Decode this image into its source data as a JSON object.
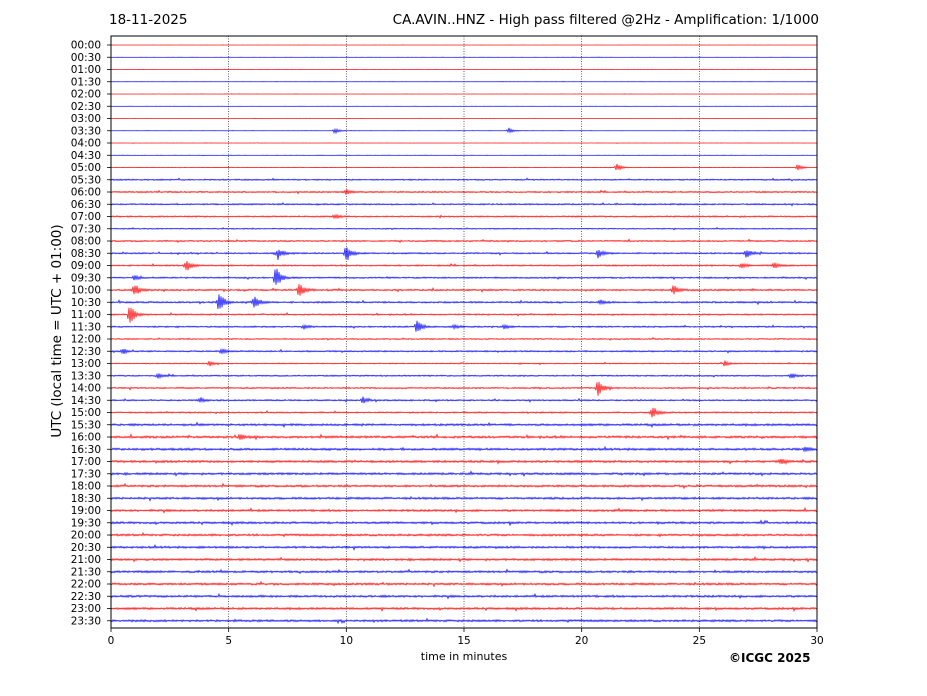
{
  "header": {
    "date": "18-11-2025",
    "title": "CA.AVIN..HNZ - High pass filtered @2Hz - Amplification: 1/1000"
  },
  "footer": {
    "copyright": "©ICGC 2025"
  },
  "chart_data": {
    "type": "line",
    "title": "CA.AVIN..HNZ - High pass filtered @2Hz - Amplification: 1/1000",
    "xlabel": "time in minutes",
    "ylabel": "UTC (local time = UTC + 01:00)",
    "xlim": [
      0,
      30
    ],
    "xticks": [
      0,
      5,
      10,
      15,
      20,
      25,
      30
    ],
    "grid": "vertical dotted lines at x ticks",
    "trace_colors": [
      "#ff0000",
      "#0000ff"
    ],
    "rows": [
      "00:00",
      "00:30",
      "01:00",
      "01:30",
      "02:00",
      "02:30",
      "03:00",
      "03:30",
      "04:00",
      "04:30",
      "05:00",
      "05:30",
      "06:00",
      "06:30",
      "07:00",
      "07:30",
      "08:00",
      "08:30",
      "09:00",
      "09:30",
      "10:00",
      "10:30",
      "11:00",
      "11:30",
      "12:00",
      "12:30",
      "13:00",
      "13:30",
      "14:00",
      "14:30",
      "15:00",
      "15:30",
      "16:00",
      "16:30",
      "17:00",
      "17:30",
      "18:00",
      "18:30",
      "19:00",
      "19:30",
      "20:00",
      "20:30",
      "21:00",
      "21:30",
      "22:00",
      "22:30",
      "23:00",
      "23:30"
    ],
    "noise_level": [
      0.05,
      0.05,
      0.05,
      0.05,
      0.07,
      0.05,
      0.06,
      0.07,
      0.07,
      0.08,
      0.18,
      0.55,
      0.6,
      0.6,
      0.6,
      0.45,
      0.6,
      0.6,
      0.6,
      0.6,
      0.7,
      0.7,
      0.6,
      0.6,
      0.5,
      0.6,
      0.45,
      0.55,
      0.6,
      0.6,
      0.6,
      0.85,
      0.9,
      0.9,
      0.9,
      0.85,
      0.85,
      0.85,
      0.85,
      0.85,
      0.85,
      0.85,
      0.85,
      0.85,
      0.85,
      0.85,
      0.85,
      0.85
    ],
    "events": [
      {
        "row": "03:30",
        "minute": 9.5,
        "amplitude": 1.5
      },
      {
        "row": "03:30",
        "minute": 16.9,
        "amplitude": 1.4
      },
      {
        "row": "05:00",
        "minute": 21.5,
        "amplitude": 2.0
      },
      {
        "row": "05:00",
        "minute": 29.2,
        "amplitude": 1.6
      },
      {
        "row": "06:00",
        "minute": 10.0,
        "amplitude": 1.2
      },
      {
        "row": "07:00",
        "minute": 9.5,
        "amplitude": 1.2
      },
      {
        "row": "08:30",
        "minute": 10.0,
        "amplitude": 4.5
      },
      {
        "row": "08:30",
        "minute": 20.7,
        "amplitude": 2.5
      },
      {
        "row": "08:30",
        "minute": 27.0,
        "amplitude": 2.2
      },
      {
        "row": "08:30",
        "minute": 7.1,
        "amplitude": 3.0
      },
      {
        "row": "09:00",
        "minute": 3.2,
        "amplitude": 3.0
      },
      {
        "row": "09:00",
        "minute": 26.8,
        "amplitude": 1.5
      },
      {
        "row": "09:00",
        "minute": 28.2,
        "amplitude": 1.5
      },
      {
        "row": "09:30",
        "minute": 7.0,
        "amplitude": 5.5
      },
      {
        "row": "09:30",
        "minute": 1.0,
        "amplitude": 1.3
      },
      {
        "row": "10:00",
        "minute": 1.0,
        "amplitude": 3.0
      },
      {
        "row": "10:00",
        "minute": 8.0,
        "amplitude": 4.0
      },
      {
        "row": "10:00",
        "minute": 23.9,
        "amplitude": 2.5
      },
      {
        "row": "10:30",
        "minute": 4.6,
        "amplitude": 5.0
      },
      {
        "row": "10:30",
        "minute": 6.1,
        "amplitude": 3.5
      },
      {
        "row": "10:30",
        "minute": 20.8,
        "amplitude": 1.2
      },
      {
        "row": "11:00",
        "minute": 0.8,
        "amplitude": 5.0
      },
      {
        "row": "11:30",
        "minute": 13.0,
        "amplitude": 3.5
      },
      {
        "row": "11:30",
        "minute": 8.2,
        "amplitude": 1.2
      },
      {
        "row": "11:30",
        "minute": 14.6,
        "amplitude": 1.1
      },
      {
        "row": "11:30",
        "minute": 16.7,
        "amplitude": 1.1
      },
      {
        "row": "12:30",
        "minute": 0.5,
        "amplitude": 1.5
      },
      {
        "row": "12:30",
        "minute": 4.7,
        "amplitude": 1.4
      },
      {
        "row": "13:00",
        "minute": 4.2,
        "amplitude": 1.2
      },
      {
        "row": "13:00",
        "minute": 26.1,
        "amplitude": 1.2
      },
      {
        "row": "13:30",
        "minute": 2.0,
        "amplitude": 1.2
      },
      {
        "row": "13:30",
        "minute": 28.9,
        "amplitude": 1.3
      },
      {
        "row": "14:00",
        "minute": 20.7,
        "amplitude": 4.0
      },
      {
        "row": "14:30",
        "minute": 10.7,
        "amplitude": 1.5
      },
      {
        "row": "14:30",
        "minute": 3.8,
        "amplitude": 1.2
      },
      {
        "row": "15:00",
        "minute": 23.0,
        "amplitude": 3.5
      },
      {
        "row": "16:00",
        "minute": 5.5,
        "amplitude": 1.4
      },
      {
        "row": "16:30",
        "minute": 29.5,
        "amplitude": 1.2
      },
      {
        "row": "17:00",
        "minute": 28.5,
        "amplitude": 1.5
      }
    ]
  }
}
